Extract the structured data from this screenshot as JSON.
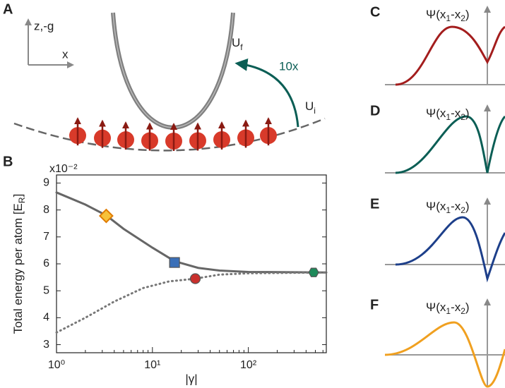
{
  "panel_a": {
    "letter": "A",
    "axis_vertical": "z,-g",
    "axis_horizontal": "x",
    "final_potential": [
      "U",
      "f"
    ],
    "ratio": "10x",
    "initial_potential": [
      "U",
      "i"
    ]
  },
  "panels_right": [
    {
      "letter": "C",
      "label": [
        "Ψ(x",
        "1",
        "-x",
        "2",
        ")"
      ],
      "color": "#a31d1d"
    },
    {
      "letter": "D",
      "label": [
        "Ψ(x",
        "1",
        "-x",
        "2",
        ")"
      ],
      "color": "#0b5e55"
    },
    {
      "letter": "E",
      "label": [
        "Ψ(x",
        "1",
        "-x",
        "2",
        ")"
      ],
      "color": "#1d3f8a"
    },
    {
      "letter": "F",
      "label": [
        "Ψ(x",
        "1",
        "-x",
        "2",
        ")"
      ],
      "color": "#f0a020"
    }
  ],
  "chart_data": {
    "type": "line",
    "letter": "B",
    "xlabel": "|γ|",
    "ylabel": [
      "Total energy per atom [E",
      "R",
      "]"
    ],
    "y_multiplier": "x10⁻²",
    "xscale": "log",
    "xlim": [
      1,
      650
    ],
    "xticks": [
      {
        "value": 1,
        "label": "10⁰"
      },
      {
        "value": 10,
        "label": "10¹"
      },
      {
        "value": 100,
        "label": "10²"
      }
    ],
    "ylim": [
      2.7,
      9.3
    ],
    "yticks": [
      3,
      4,
      5,
      6,
      7,
      8,
      9
    ],
    "series": [
      {
        "style": "solid",
        "color": "#666666",
        "x": [
          1,
          2,
          3.3,
          5,
          10,
          17,
          30,
          50,
          100,
          650
        ],
        "values": [
          8.65,
          8.2,
          7.8,
          7.3,
          6.6,
          6.1,
          5.85,
          5.75,
          5.7,
          5.68
        ]
      },
      {
        "style": "dotted",
        "color": "#777777",
        "x": [
          1,
          2,
          4,
          8,
          15,
          28,
          50,
          100,
          650
        ],
        "values": [
          3.45,
          4.0,
          4.6,
          5.1,
          5.35,
          5.45,
          5.6,
          5.65,
          5.68
        ]
      }
    ],
    "markers": [
      {
        "shape": "diamond",
        "color": "#f7c23a",
        "x": 3.3,
        "y": 7.78
      },
      {
        "shape": "square",
        "color": "#3a6fb8",
        "x": 17,
        "y": 6.05
      },
      {
        "shape": "circle",
        "color": "#c9302c",
        "x": 28,
        "y": 5.45
      },
      {
        "shape": "hexagon",
        "color": "#1e8a5a",
        "x": 480,
        "y": 5.68
      }
    ]
  }
}
